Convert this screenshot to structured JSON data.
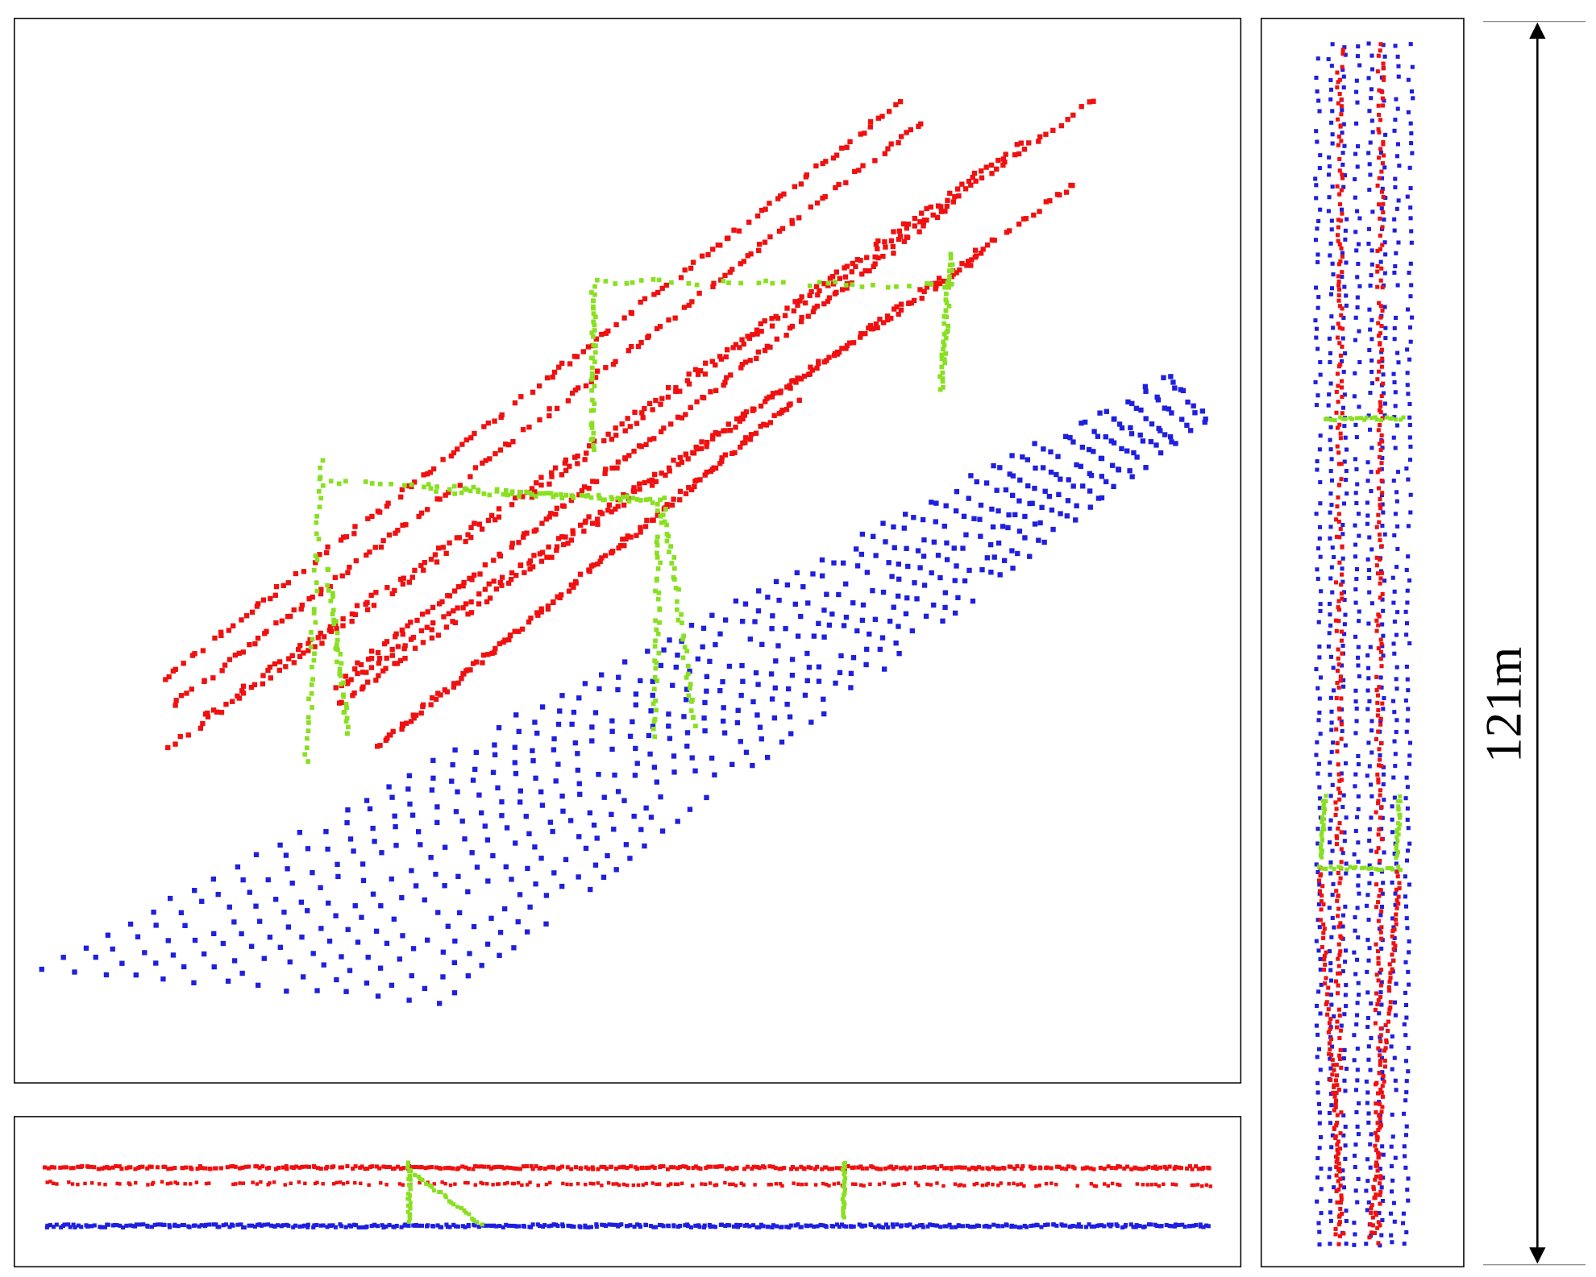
{
  "dimension_label": "121m"
}
